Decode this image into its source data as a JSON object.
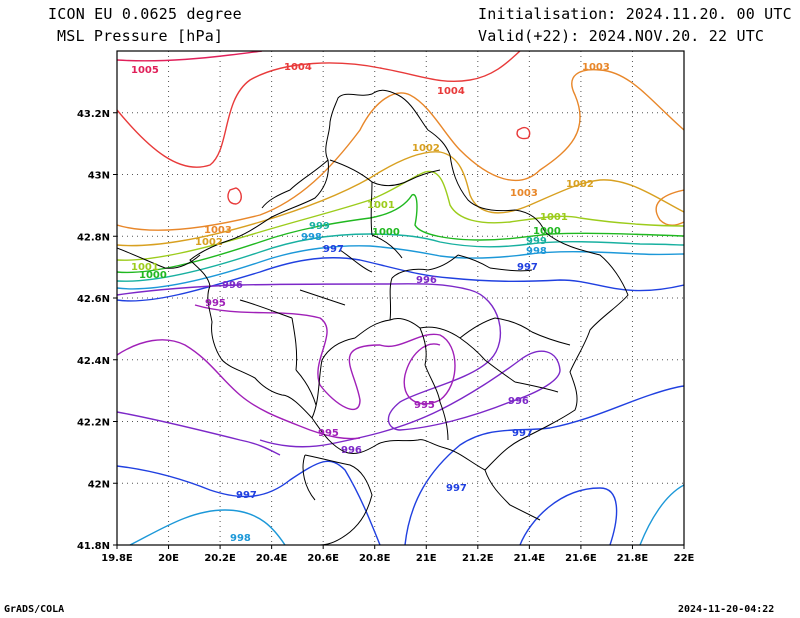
{
  "header": {
    "model": "ICON EU 0.0625 degree",
    "field": "MSL Pressure [hPa]",
    "init": "Initialisation: 2024.11.20. 00 UTC",
    "valid": "Valid(+22): 2024.NOV.20. 22 UTC"
  },
  "footer": {
    "left": "GrADS/COLA",
    "right": "2024-11-20-04:22"
  },
  "map": {
    "lon_range": [
      19.8,
      22.0
    ],
    "lat_range": [
      41.8,
      43.4
    ],
    "lon_ticks": [
      "19.8E",
      "20E",
      "20.2E",
      "20.4E",
      "20.6E",
      "20.8E",
      "21E",
      "21.2E",
      "21.4E",
      "21.6E",
      "21.8E",
      "22E"
    ],
    "lat_ticks": [
      "41.8N",
      "42N",
      "42.2N",
      "42.4N",
      "42.6N",
      "42.8N",
      "43N",
      "43.2N"
    ],
    "grid": true,
    "grid_style": "dotted"
  },
  "contour_labels": [
    {
      "text": "1005",
      "color": "#e0205a"
    },
    {
      "text": "1004",
      "color": "#e83a3a"
    },
    {
      "text": "1004",
      "color": "#e83a3a"
    },
    {
      "text": "1003",
      "color": "#e8872a"
    },
    {
      "text": "1003",
      "color": "#e8872a"
    },
    {
      "text": "1003",
      "color": "#e8872a"
    },
    {
      "text": "1002",
      "color": "#d8a020"
    },
    {
      "text": "1002",
      "color": "#d8a020"
    },
    {
      "text": "1002",
      "color": "#d8a020"
    },
    {
      "text": "1001",
      "color": "#9ccc1c"
    },
    {
      "text": "1001",
      "color": "#9ccc1c"
    },
    {
      "text": "1001",
      "color": "#9ccc1c"
    },
    {
      "text": "1000",
      "color": "#20b820"
    },
    {
      "text": "1000",
      "color": "#20b820"
    },
    {
      "text": "1000",
      "color": "#20b820"
    },
    {
      "text": "999",
      "color": "#18b0a0"
    },
    {
      "text": "999",
      "color": "#18b0a0"
    },
    {
      "text": "998",
      "color": "#1c98d8"
    },
    {
      "text": "998",
      "color": "#1c98d8"
    },
    {
      "text": "998",
      "color": "#1c98d8"
    },
    {
      "text": "997",
      "color": "#2040e0"
    },
    {
      "text": "997",
      "color": "#2040e0"
    },
    {
      "text": "997",
      "color": "#2040e0"
    },
    {
      "text": "997",
      "color": "#2040e0"
    },
    {
      "text": "997",
      "color": "#2040e0"
    },
    {
      "text": "996",
      "color": "#7c28c8"
    },
    {
      "text": "996",
      "color": "#7c28c8"
    },
    {
      "text": "996",
      "color": "#7c28c8"
    },
    {
      "text": "996",
      "color": "#7c28c8"
    },
    {
      "text": "995",
      "color": "#a020b8"
    },
    {
      "text": "995",
      "color": "#a020b8"
    },
    {
      "text": "995",
      "color": "#a020b8"
    }
  ]
}
